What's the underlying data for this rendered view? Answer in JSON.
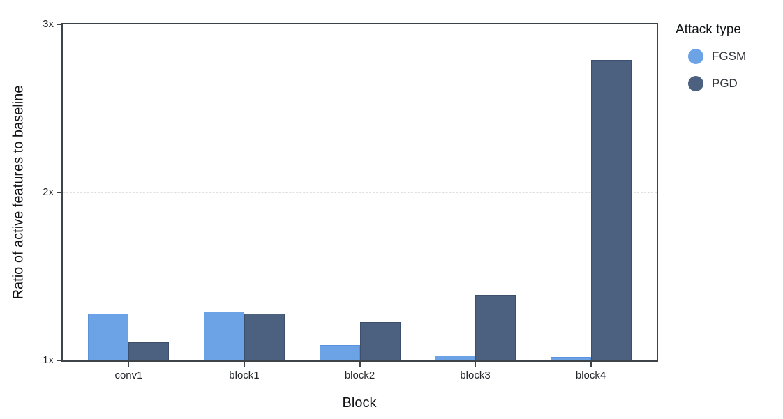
{
  "legend": {
    "title": "Attack type"
  },
  "chart_data": {
    "type": "bar",
    "title": "",
    "xlabel": "Block",
    "ylabel": "Ratio of active features to baseline",
    "categories": [
      "conv1",
      "block1",
      "block2",
      "block3",
      "block4"
    ],
    "series": [
      {
        "name": "FGSM",
        "color": "#6CA3E6",
        "edge_color": "#5A93DB",
        "values": [
          1.28,
          1.29,
          1.09,
          1.03,
          1.02
        ]
      },
      {
        "name": "PGD",
        "color": "#4C6180",
        "edge_color": "#3C506E",
        "values": [
          1.11,
          1.28,
          1.23,
          1.39,
          2.79
        ]
      }
    ],
    "ylim": [
      1,
      3
    ],
    "yticks": [
      {
        "value": 1,
        "label": "1x"
      },
      {
        "value": 2,
        "label": "2x"
      },
      {
        "value": 3,
        "label": "3x"
      }
    ],
    "gridlines": [
      2
    ],
    "grid": "horizontal dashed at 2x only",
    "legend_position": "outside-top-right",
    "legend_title": "Attack type"
  }
}
